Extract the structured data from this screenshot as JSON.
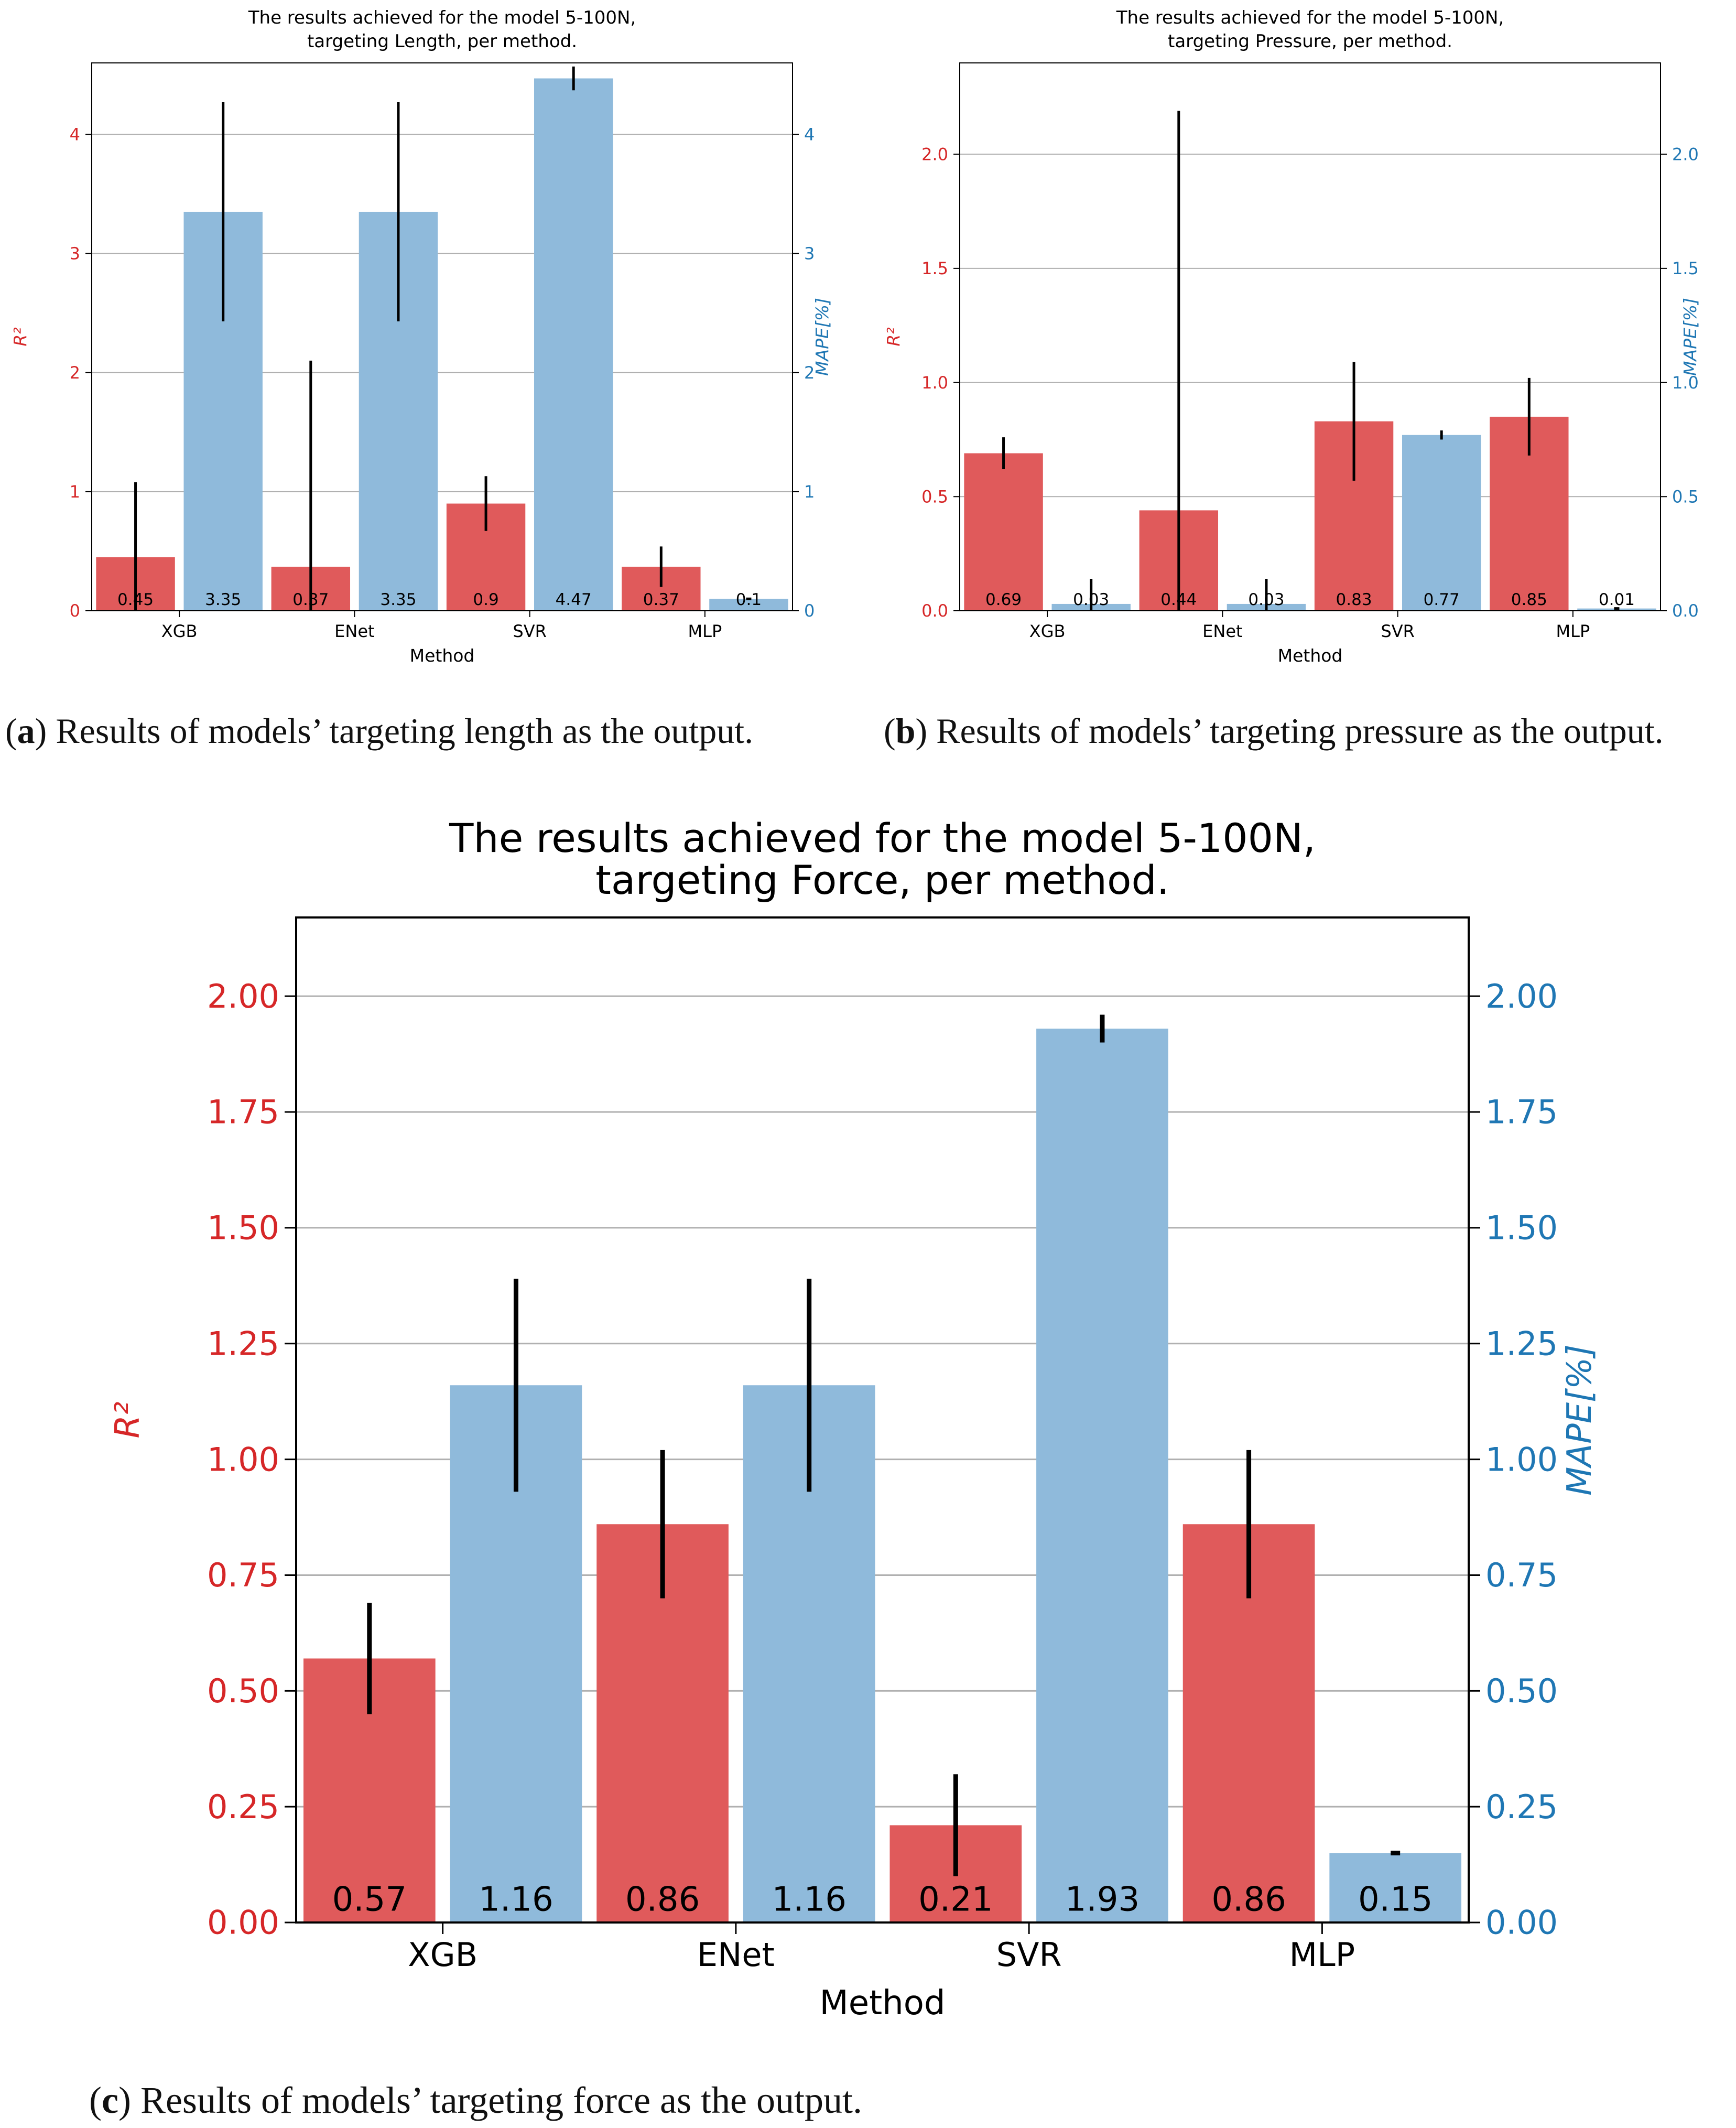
{
  "colors": {
    "r2": "#e05a5b",
    "mape": "#8fbadb",
    "r2_axis": "#d62728",
    "mape_axis": "#1f77b4",
    "grid": "#b0b0b0",
    "error": "#000000"
  },
  "captions": {
    "a": {
      "label": "a",
      "text": "Results of models’ targeting length as the output."
    },
    "b": {
      "label": "b",
      "text": "Results of models’ targeting pressure as the output."
    },
    "c": {
      "label": "c",
      "text": "Results of models’ targeting force as the output."
    }
  },
  "chart_data": [
    {
      "type": "bar",
      "title": "The results achieved for the model 5-100N,",
      "title2": "targeting Length, per method.",
      "xlabel": "Method",
      "ylabel_left": "R²",
      "ylabel_right": "MAPE[%]",
      "categories": [
        "XGB",
        "ENet",
        "SVR",
        "MLP"
      ],
      "ylim": [
        0,
        4.6
      ],
      "yticks": [
        0,
        1,
        2,
        3,
        4
      ],
      "tick_labels": [
        "0",
        "1",
        "2",
        "3",
        "4"
      ],
      "series": [
        {
          "name": "R²",
          "values": [
            0.45,
            0.37,
            0.9,
            0.37
          ],
          "errors": [
            0.63,
            1.73,
            0.23,
            0.17
          ],
          "labels": [
            "0.45",
            "0.37",
            "0.9",
            "0.37"
          ]
        },
        {
          "name": "MAPE[%]",
          "values": [
            3.35,
            3.35,
            4.47,
            0.1
          ],
          "errors": [
            0.92,
            0.92,
            0.1,
            0.0
          ],
          "labels": [
            "3.35",
            "3.35",
            "4.47",
            "0.1"
          ]
        }
      ]
    },
    {
      "type": "bar",
      "title": "The results achieved for the model 5-100N,",
      "title2": "targeting Pressure, per method.",
      "xlabel": "Method",
      "ylabel_left": "R²",
      "ylabel_right": "MAPE[%]",
      "categories": [
        "XGB",
        "ENet",
        "SVR",
        "MLP"
      ],
      "ylim": [
        0,
        2.4
      ],
      "yticks": [
        0,
        0.5,
        1.0,
        1.5,
        2.0
      ],
      "tick_labels": [
        "0.0",
        "0.5",
        "1.0",
        "1.5",
        "2.0"
      ],
      "series": [
        {
          "name": "R²",
          "values": [
            0.69,
            0.44,
            0.83,
            0.85
          ],
          "errors": [
            0.07,
            1.75,
            0.26,
            0.17
          ],
          "labels": [
            "0.69",
            "0.44",
            "0.83",
            "0.85"
          ]
        },
        {
          "name": "MAPE[%]",
          "values": [
            0.03,
            0.03,
            0.77,
            0.01
          ],
          "errors": [
            0.11,
            0.11,
            0.02,
            0.0
          ],
          "labels": [
            "0.03",
            "0.03",
            "0.77",
            "0.01"
          ]
        }
      ]
    },
    {
      "type": "bar",
      "title": "The results achieved for the model 5-100N,",
      "title2": "targeting Force, per method.",
      "xlabel": "Method",
      "ylabel_left": "R²",
      "ylabel_right": "MAPE[%]",
      "categories": [
        "XGB",
        "ENet",
        "SVR",
        "MLP"
      ],
      "ylim": [
        0,
        2.17
      ],
      "yticks": [
        0,
        0.25,
        0.5,
        0.75,
        1.0,
        1.25,
        1.5,
        1.75,
        2.0
      ],
      "tick_labels": [
        "0.00",
        "0.25",
        "0.50",
        "0.75",
        "1.00",
        "1.25",
        "1.50",
        "1.75",
        "2.00"
      ],
      "series": [
        {
          "name": "R²",
          "values": [
            0.57,
            0.86,
            0.21,
            0.86
          ],
          "errors": [
            0.12,
            0.16,
            0.11,
            0.16
          ],
          "labels": [
            "0.57",
            "0.86",
            "0.21",
            "0.86"
          ]
        },
        {
          "name": "MAPE[%]",
          "values": [
            1.16,
            1.16,
            1.93,
            0.15
          ],
          "errors": [
            0.23,
            0.23,
            0.03,
            0.0
          ],
          "labels": [
            "1.16",
            "1.16",
            "1.93",
            "0.15"
          ]
        }
      ]
    }
  ]
}
